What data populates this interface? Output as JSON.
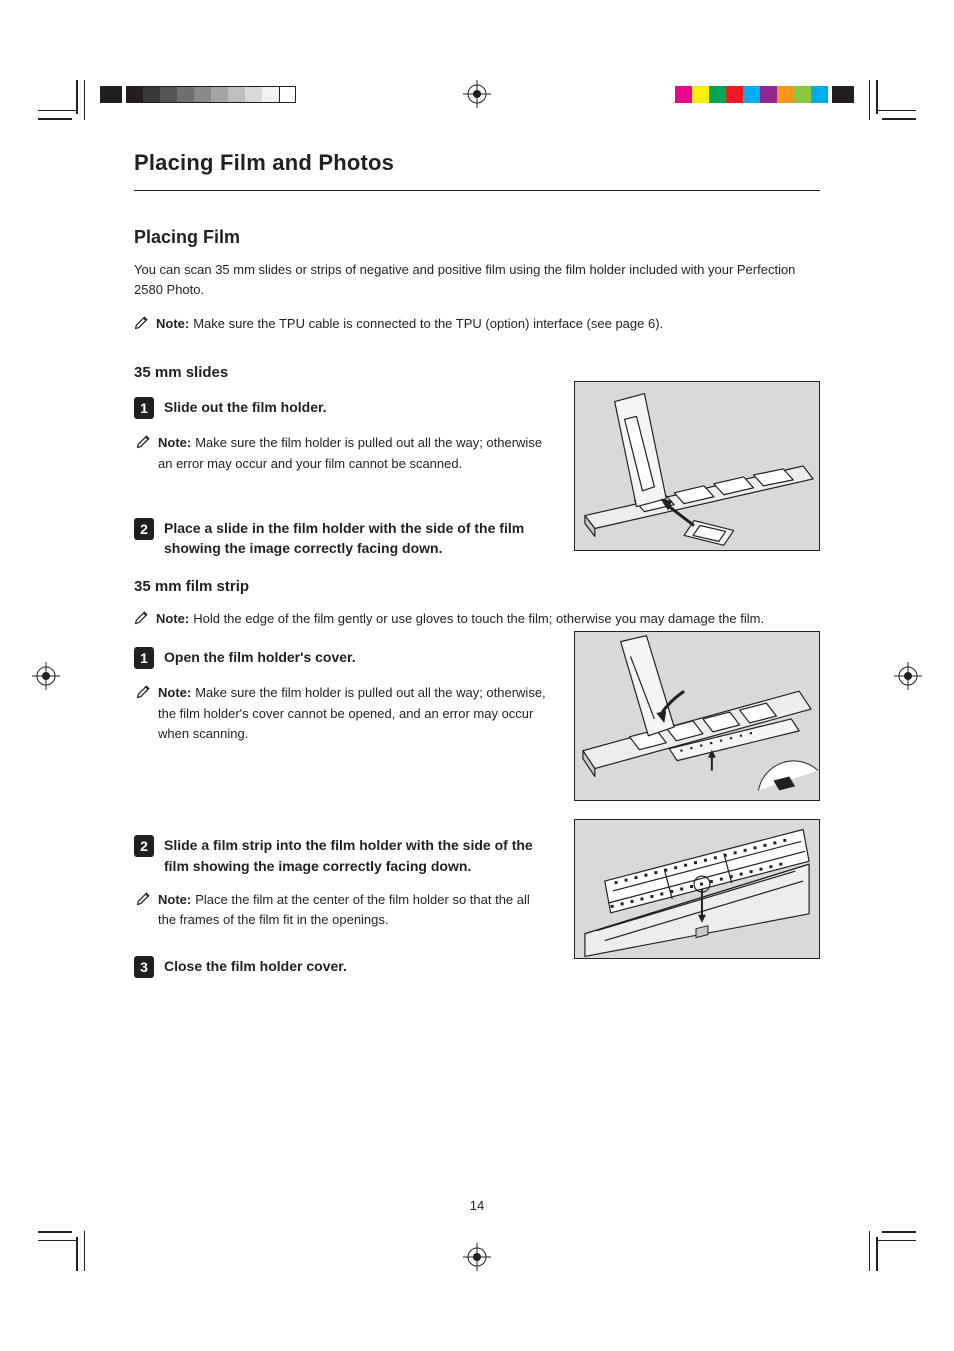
{
  "title": "Placing Film and Photos",
  "section_heading": "Placing Film",
  "intro_paragraph": "You can scan 35 mm slides or strips of negative and positive film using the film holder included with your Perfection 2580 Photo.",
  "intro_note_label": "Note:",
  "intro_note_text": "Make sure the TPU cable is connected to the TPU (option) interface (see page 6).",
  "subsection_slides": "35 mm slides",
  "slide_step1": "Slide out the film holder.",
  "slide_note_label": "Note:",
  "slide_note_text": "Make sure the film holder is pulled out all the way; otherwise an error may occur and your film cannot be scanned.",
  "slide_step2": "Place a slide in the film holder with the side of the film showing the image correctly facing down.",
  "subsection_strip": "35 mm film strip",
  "strip_intro_note_label": "Note:",
  "strip_intro_note_text": "Hold the edge of the film gently or use gloves to touch the film; otherwise you may damage the film.",
  "strip_step1": "Open the film holder's cover.",
  "strip_note_label": "Note:",
  "strip_note_text": "Make sure the film holder is pulled out all the way; otherwise, the film holder's cover cannot be opened, and an error may occur when scanning.",
  "strip_step2": "Slide a film strip into the film holder with the side of the film showing the image correctly facing down.",
  "strip_step2_note_label": "Note:",
  "strip_step2_note_text": "Place the film at the center of the film holder so that the all the frames of the film fit in the openings.",
  "strip_step3": "Close the film holder cover.",
  "page_number": "14",
  "gray_swatches": [
    "#231f20",
    "#3a3a3a",
    "#555555",
    "#6f6f6f",
    "#8a8a8a",
    "#a4a4a4",
    "#bfbfbf",
    "#d9d9d9",
    "#f2f2f2"
  ],
  "color_swatches": [
    "#ec008c",
    "#fff200",
    "#00a651",
    "#ed1c24",
    "#00adef",
    "#92278f",
    "#f7941d",
    "#8dc63f",
    "#00aeef"
  ],
  "fig_bg": "#d9d9da",
  "fig_stroke": "#231f20",
  "fig1_h": 170,
  "fig2_h": 170,
  "fig3_h": 140
}
